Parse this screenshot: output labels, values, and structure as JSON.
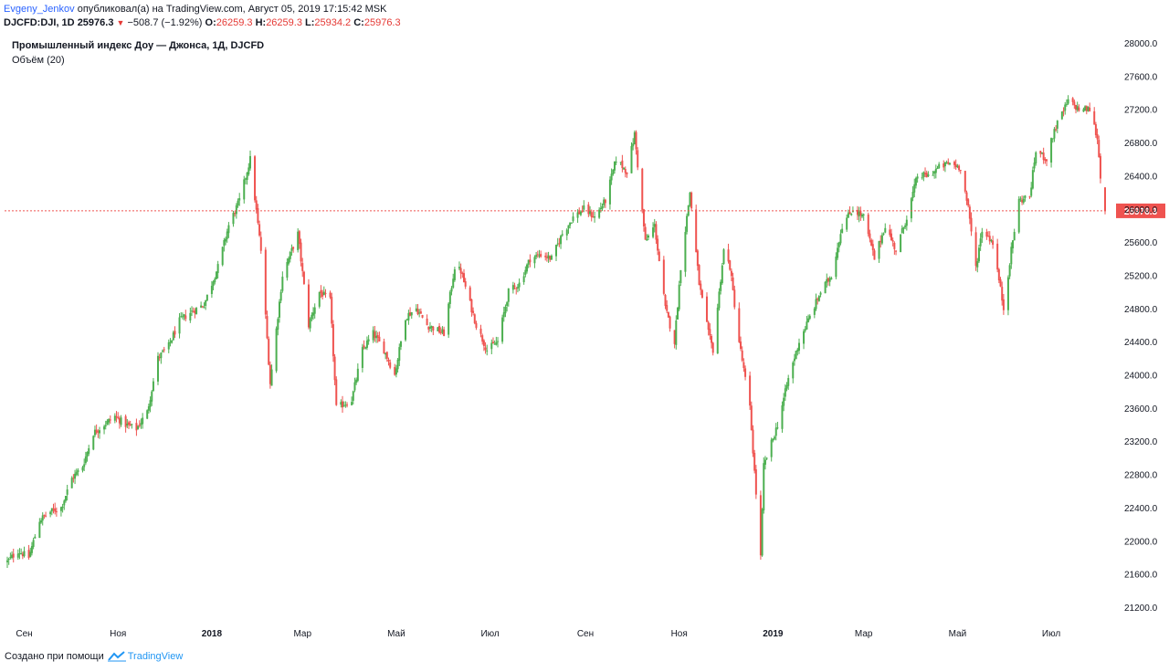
{
  "header": {
    "author": "Evgeny_Jenkov",
    "published_text": "опубликовал(а) на TradingView.com, Август 05, 2019 17:15:42 MSK",
    "symbol": "DJCFD:DJI, 1D",
    "last": "25976.3",
    "change": "−508.7 (−1.92%)",
    "o_label": "O:",
    "o": "26259.3",
    "h_label": "H:",
    "h": "26259.3",
    "l_label": "L:",
    "l": "25934.2",
    "c_label": "C:",
    "c": "25976.3"
  },
  "legend": {
    "title": "Промышленный индекс Доу — Джонса, 1Д, DJCFD",
    "volume": "Объём (20)"
  },
  "footer": {
    "text": "Создано при помощи",
    "brand": "TradingView"
  },
  "colors": {
    "up": "#4caf50",
    "down": "#ef5350",
    "priceLine": "#ef5350",
    "axisText": "#131722"
  },
  "chart_data": {
    "type": "candlestick",
    "title": "Промышленный индекс Доу — Джонса, 1Д, DJCFD",
    "ylim": [
      21000,
      28000
    ],
    "y_ticks": [
      21200,
      21600,
      22000,
      22400,
      22800,
      23200,
      23600,
      24000,
      24400,
      24800,
      25200,
      25600,
      26000,
      26400,
      26800,
      27200,
      27600,
      28000
    ],
    "y_tick_labels": [
      "21200.0",
      "21600.0",
      "22000.0",
      "22400.0",
      "22800.0",
      "23200.0",
      "23600.0",
      "24000.0",
      "24400.0",
      "24800.0",
      "25200.0",
      "25600.0",
      "26000.0",
      "26400.0",
      "26800.0",
      "27200.0",
      "27600.0",
      "28000.0"
    ],
    "x_labels": [
      "Сен",
      "Ноя",
      "2018",
      "Мар",
      "Май",
      "Июл",
      "Сен",
      "Ноя",
      "2019",
      "Мар",
      "Май",
      "Июл"
    ],
    "x_label_dates": [
      "2017-09-01",
      "2017-11-01",
      "2018-01-01",
      "2018-03-01",
      "2018-05-01",
      "2018-07-01",
      "2018-09-01",
      "2018-11-01",
      "2019-01-01",
      "2019-03-01",
      "2019-05-01",
      "2019-07-01"
    ],
    "x_bold": [
      "2018",
      "2019"
    ],
    "last_price": 25976.3,
    "last_price_label": "25976.3",
    "close_series": [
      [
        "2017-08-21",
        21750
      ],
      [
        "2017-08-28",
        21880
      ],
      [
        "2017-09-04",
        21800
      ],
      [
        "2017-09-11",
        22250
      ],
      [
        "2017-09-18",
        22350
      ],
      [
        "2017-09-25",
        22400
      ],
      [
        "2017-10-02",
        22750
      ],
      [
        "2017-10-09",
        22900
      ],
      [
        "2017-10-16",
        23300
      ],
      [
        "2017-10-23",
        23400
      ],
      [
        "2017-10-30",
        23500
      ],
      [
        "2017-11-06",
        23400
      ],
      [
        "2017-11-13",
        23350
      ],
      [
        "2017-11-20",
        23550
      ],
      [
        "2017-11-27",
        24200
      ],
      [
        "2017-12-04",
        24350
      ],
      [
        "2017-12-11",
        24650
      ],
      [
        "2017-12-18",
        24750
      ],
      [
        "2017-12-27",
        24850
      ],
      [
        "2018-01-05",
        25300
      ],
      [
        "2018-01-12",
        25800
      ],
      [
        "2018-01-19",
        26100
      ],
      [
        "2018-01-26",
        26600
      ],
      [
        "2018-02-02",
        25500
      ],
      [
        "2018-02-08",
        23900
      ],
      [
        "2018-02-16",
        25200
      ],
      [
        "2018-02-26",
        25700
      ],
      [
        "2018-03-05",
        24600
      ],
      [
        "2018-03-12",
        25000
      ],
      [
        "2018-03-19",
        24900
      ],
      [
        "2018-03-23",
        23600
      ],
      [
        "2018-04-02",
        23700
      ],
      [
        "2018-04-09",
        24300
      ],
      [
        "2018-04-16",
        24500
      ],
      [
        "2018-04-23",
        24300
      ],
      [
        "2018-04-30",
        24000
      ],
      [
        "2018-05-07",
        24700
      ],
      [
        "2018-05-14",
        24800
      ],
      [
        "2018-05-21",
        24600
      ],
      [
        "2018-06-01",
        24500
      ],
      [
        "2018-06-08",
        25300
      ],
      [
        "2018-06-12",
        25250
      ],
      [
        "2018-06-22",
        24600
      ],
      [
        "2018-06-29",
        24300
      ],
      [
        "2018-07-06",
        24400
      ],
      [
        "2018-07-13",
        25000
      ],
      [
        "2018-07-20",
        25100
      ],
      [
        "2018-07-27",
        25400
      ],
      [
        "2018-08-03",
        25450
      ],
      [
        "2018-08-10",
        25400
      ],
      [
        "2018-08-17",
        25700
      ],
      [
        "2018-08-24",
        25900
      ],
      [
        "2018-08-31",
        26000
      ],
      [
        "2018-09-07",
        25900
      ],
      [
        "2018-09-14",
        26100
      ],
      [
        "2018-09-21",
        26600
      ],
      [
        "2018-09-28",
        26450
      ],
      [
        "2018-10-03",
        26900
      ],
      [
        "2018-10-10",
        25600
      ],
      [
        "2018-10-16",
        25800
      ],
      [
        "2018-10-23",
        24800
      ],
      [
        "2018-10-29",
        24400
      ],
      [
        "2018-11-02",
        25300
      ],
      [
        "2018-11-08",
        26200
      ],
      [
        "2018-11-14",
        25100
      ],
      [
        "2018-11-20",
        24500
      ],
      [
        "2018-11-23",
        24300
      ],
      [
        "2018-11-30",
        25500
      ],
      [
        "2018-12-04",
        25300
      ],
      [
        "2018-12-10",
        24400
      ],
      [
        "2018-12-17",
        23600
      ],
      [
        "2018-12-24",
        21800
      ],
      [
        "2018-12-26",
        22900
      ],
      [
        "2019-01-04",
        23400
      ],
      [
        "2019-01-11",
        23950
      ],
      [
        "2019-01-18",
        24400
      ],
      [
        "2019-01-25",
        24700
      ],
      [
        "2019-02-01",
        25000
      ],
      [
        "2019-02-08",
        25200
      ],
      [
        "2019-02-15",
        25800
      ],
      [
        "2019-02-22",
        26000
      ],
      [
        "2019-03-01",
        25900
      ],
      [
        "2019-03-08",
        25400
      ],
      [
        "2019-03-15",
        25800
      ],
      [
        "2019-03-22",
        25500
      ],
      [
        "2019-03-29",
        25900
      ],
      [
        "2019-04-05",
        26400
      ],
      [
        "2019-04-12",
        26400
      ],
      [
        "2019-04-19",
        26500
      ],
      [
        "2019-04-26",
        26550
      ],
      [
        "2019-05-03",
        26500
      ],
      [
        "2019-05-08",
        26000
      ],
      [
        "2019-05-13",
        25300
      ],
      [
        "2019-05-17",
        25750
      ],
      [
        "2019-05-24",
        25600
      ],
      [
        "2019-05-31",
        24800
      ],
      [
        "2019-06-05",
        25500
      ],
      [
        "2019-06-10",
        26100
      ],
      [
        "2019-06-17",
        26150
      ],
      [
        "2019-06-21",
        26700
      ],
      [
        "2019-06-28",
        26600
      ],
      [
        "2019-07-03",
        26950
      ],
      [
        "2019-07-12",
        27300
      ],
      [
        "2019-07-19",
        27200
      ],
      [
        "2019-07-26",
        27200
      ],
      [
        "2019-07-31",
        26850
      ],
      [
        "2019-08-02",
        26400
      ],
      [
        "2019-08-05",
        25976.3
      ]
    ]
  }
}
